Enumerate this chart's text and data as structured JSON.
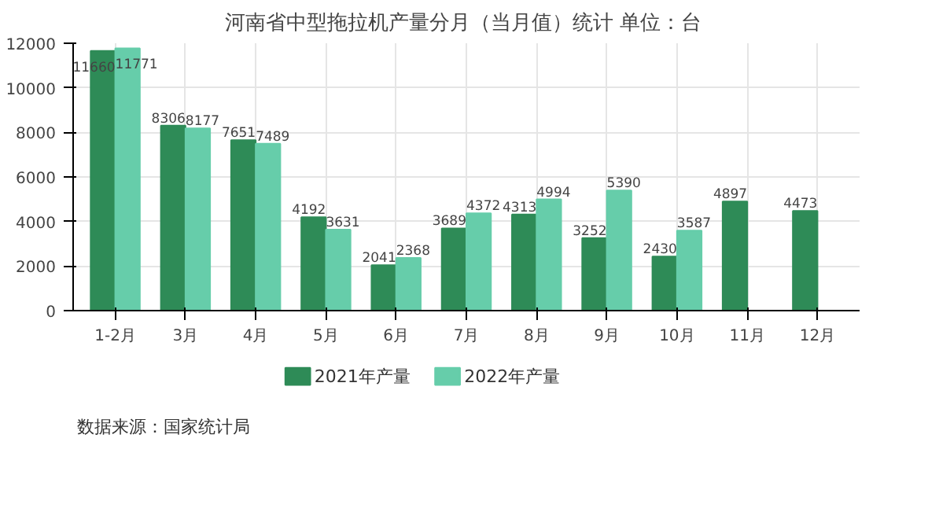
{
  "chart_data": {
    "type": "bar",
    "title": "河南省中型拖拉机产量分月（当月值）统计  单位：台",
    "categories": [
      "1-2月",
      "3月",
      "4月",
      "5月",
      "6月",
      "7月",
      "8月",
      "9月",
      "10月",
      "11月",
      "12月"
    ],
    "series": [
      {
        "name": "2021年产量",
        "color": "#2e8b57",
        "values": [
          11660,
          8306,
          7651,
          4192,
          2041,
          3689,
          4313,
          3252,
          2430,
          4897,
          4473
        ]
      },
      {
        "name": "2022年产量",
        "color": "#66cdaa",
        "values": [
          11771,
          8177,
          7489,
          3631,
          2368,
          4372,
          4994,
          5390,
          3587,
          null,
          null
        ]
      }
    ],
    "ylim": [
      0,
      12000
    ],
    "yticks": [
      0,
      2000,
      4000,
      6000,
      8000,
      10000,
      12000
    ],
    "grid": true,
    "legend": "bottom",
    "data_labels": true,
    "annotations": [
      "数据来源：国家统计局"
    ]
  }
}
